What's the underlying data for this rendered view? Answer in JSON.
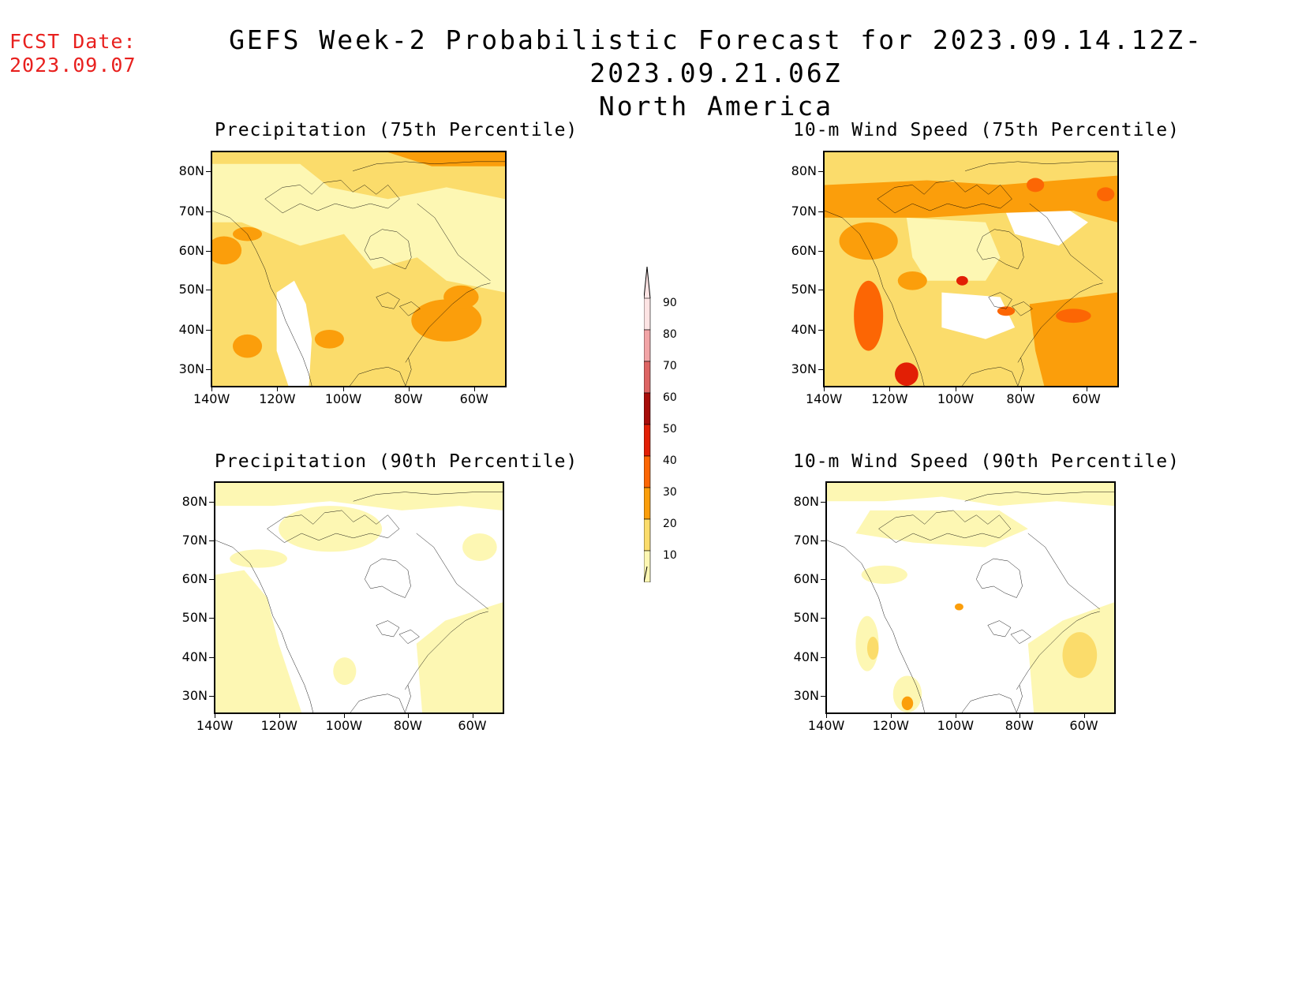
{
  "header": {
    "fcst_label": "FCST Date:",
    "fcst_date": "2023.09.07",
    "title_line1": "GEFS Week-2 Probabilistic Forecast for 2023.09.14.12Z-2023.09.21.06Z",
    "title_line2": "North America"
  },
  "panels": [
    {
      "id": "precip75",
      "title": "Precipitation (75th Percentile)"
    },
    {
      "id": "wind75",
      "title": "10-m Wind Speed (75th Percentile)"
    },
    {
      "id": "precip90",
      "title": "Precipitation (90th Percentile)"
    },
    {
      "id": "wind90",
      "title": "10-m Wind Speed (90th Percentile)"
    }
  ],
  "axes": {
    "lat_labels": [
      "80N",
      "70N",
      "60N",
      "50N",
      "40N",
      "30N"
    ],
    "lon_labels": [
      "140W",
      "120W",
      "100W",
      "80W",
      "60W"
    ]
  },
  "colorbar": {
    "labels": [
      "90",
      "80",
      "70",
      "60",
      "50",
      "40",
      "30",
      "20",
      "10"
    ],
    "colors": [
      "#fde4e4",
      "#f2a4a6",
      "#dd6463",
      "#a70d0a",
      "#e21f05",
      "#fc6604",
      "#fb9e0b",
      "#fbdc6b",
      "#fdf7b3"
    ]
  },
  "palette": {
    "white": "#ffffff",
    "c10": "#fdf7b3",
    "c20": "#fbdc6b",
    "c30": "#fb9e0b",
    "c40": "#fc6604",
    "c50": "#e21f05",
    "c60": "#a70d0a",
    "fcst_color": "#e8201e"
  }
}
